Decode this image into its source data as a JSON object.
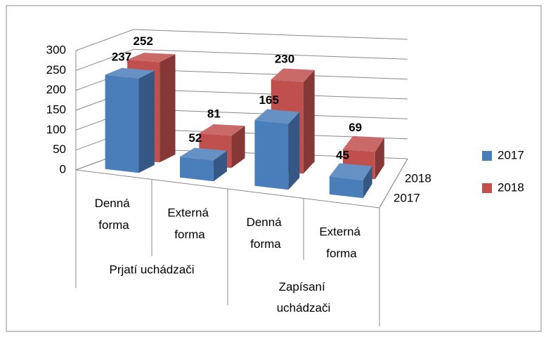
{
  "chart_data": {
    "type": "bar3d",
    "groups": [
      "Prjatí uchádzači",
      "Zapísaní uchádzači"
    ],
    "categories": [
      "Denná forma",
      "Externá forma",
      "Denná forma",
      "Externá forma"
    ],
    "series": [
      {
        "name": "2017",
        "color": "#4a7ebb",
        "values": [
          237,
          52,
          165,
          45
        ]
      },
      {
        "name": "2018",
        "color": "#c0504d",
        "values": [
          252,
          81,
          230,
          69
        ]
      }
    ],
    "ylim": [
      0,
      300
    ],
    "yticks": [
      0,
      50,
      100,
      150,
      200,
      250,
      300
    ],
    "grid": true,
    "legend": "right"
  }
}
